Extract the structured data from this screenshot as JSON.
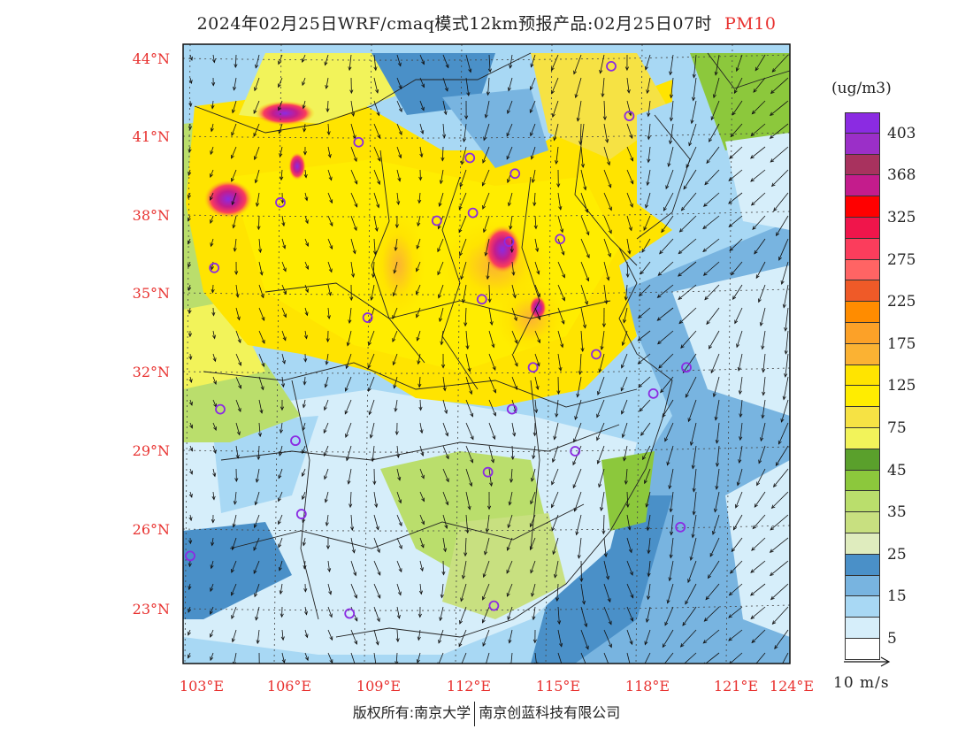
{
  "title": {
    "main": "2024年02月25日WRF/cmaq模式12km预报产品:02月25日07时",
    "variable": "PM10"
  },
  "axes": {
    "lat_labels": [
      "44°N",
      "41°N",
      "38°N",
      "35°N",
      "32°N",
      "29°N",
      "26°N",
      "23°N"
    ],
    "lon_labels": [
      "103°E",
      "106°E",
      "109°E",
      "112°E",
      "115°E",
      "118°E",
      "121°E",
      "124°E"
    ]
  },
  "legend": {
    "unit": "(ug/m3)",
    "colors": [
      "#8b2be2",
      "#9b2fc8",
      "#a8325e",
      "#c41c8c",
      "#ff0000",
      "#f0154b",
      "#fb3d5c",
      "#ff6464",
      "#ef5a28",
      "#ff8c00",
      "#fca128",
      "#fbb233",
      "#ffe400",
      "#ffed00",
      "#f6e244",
      "#f2f35a",
      "#5aa02c",
      "#8cc83c",
      "#bade6c",
      "#c8e080",
      "#dfecbe",
      "#4a90c8",
      "#78b4e0",
      "#a8d8f4",
      "#d6eefa",
      "#ffffff"
    ],
    "tick_labels": [
      "403",
      "368",
      "325",
      "275",
      "225",
      "175",
      "125",
      "75",
      "45",
      "35",
      "25",
      "15",
      "5"
    ],
    "reference_vector_label": "10 m/s"
  },
  "map": {
    "cities": [
      {
        "lon": 117.0,
        "lat": 43.7
      },
      {
        "lon": 117.6,
        "lat": 41.8
      },
      {
        "lon": 108.6,
        "lat": 40.8
      },
      {
        "lon": 112.3,
        "lat": 40.2
      },
      {
        "lon": 113.8,
        "lat": 39.6
      },
      {
        "lon": 106.0,
        "lat": 38.5
      },
      {
        "lon": 111.2,
        "lat": 37.8
      },
      {
        "lon": 112.4,
        "lat": 38.1
      },
      {
        "lon": 115.3,
        "lat": 37.1
      },
      {
        "lon": 113.6,
        "lat": 37.0
      },
      {
        "lon": 103.8,
        "lat": 36.0
      },
      {
        "lon": 112.7,
        "lat": 34.8
      },
      {
        "lon": 108.9,
        "lat": 34.1
      },
      {
        "lon": 116.5,
        "lat": 32.7
      },
      {
        "lon": 114.4,
        "lat": 32.2
      },
      {
        "lon": 119.5,
        "lat": 32.2
      },
      {
        "lon": 118.4,
        "lat": 31.2
      },
      {
        "lon": 113.7,
        "lat": 30.6
      },
      {
        "lon": 104.0,
        "lat": 30.6
      },
      {
        "lon": 106.5,
        "lat": 29.4
      },
      {
        "lon": 115.8,
        "lat": 29.0
      },
      {
        "lon": 112.9,
        "lat": 28.2
      },
      {
        "lon": 119.3,
        "lat": 26.1
      },
      {
        "lon": 106.7,
        "lat": 26.6
      },
      {
        "lon": 103.0,
        "lat": 25.0
      },
      {
        "lon": 108.3,
        "lat": 22.8
      },
      {
        "lon": 113.1,
        "lat": 23.1
      }
    ]
  },
  "footer": {
    "copyright_a": "版权所有:南京大学",
    "copyright_b": "南京创蓝科技有限公司"
  }
}
